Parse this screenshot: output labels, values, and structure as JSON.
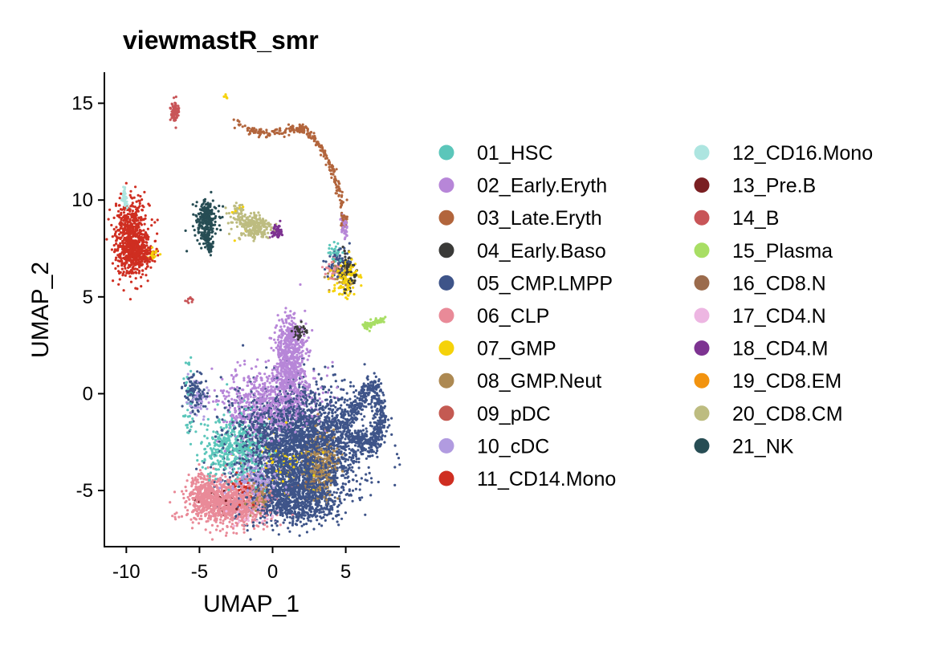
{
  "chart_data": {
    "type": "scatter",
    "title": "viewmastR_smr",
    "xlabel": "UMAP_1",
    "ylabel": "UMAP_2",
    "xlim": [
      -11.5,
      8.7
    ],
    "ylim": [
      -7.9,
      16.6
    ],
    "x_ticks": [
      -10,
      -5,
      0,
      5
    ],
    "x_tick_labels": [
      "-10",
      "-5",
      "0",
      "5"
    ],
    "y_ticks": [
      -5,
      0,
      5,
      10,
      15
    ],
    "y_tick_labels": [
      "-5",
      "0",
      "5",
      "10",
      "15"
    ],
    "grid": false,
    "legend_position": "right",
    "series": [
      {
        "name": "01_HSC",
        "color": "#5BC6BA"
      },
      {
        "name": "02_Early.Eryth",
        "color": "#B786D8"
      },
      {
        "name": "03_Late.Eryth",
        "color": "#B2653C"
      },
      {
        "name": "04_Early.Baso",
        "color": "#3A3A38"
      },
      {
        "name": "05_CMP.LMPP",
        "color": "#3E5489"
      },
      {
        "name": "06_CLP",
        "color": "#E98A98"
      },
      {
        "name": "07_GMP",
        "color": "#F5D20A"
      },
      {
        "name": "08_GMP.Neut",
        "color": "#AD8952"
      },
      {
        "name": "09_pDC",
        "color": "#C45A52"
      },
      {
        "name": "10_cDC",
        "color": "#B19BE0"
      },
      {
        "name": "11_CD14.Mono",
        "color": "#CF2E21"
      },
      {
        "name": "12_CD16.Mono",
        "color": "#ADE5E0"
      },
      {
        "name": "13_Pre.B",
        "color": "#7A1F22"
      },
      {
        "name": "14_B",
        "color": "#C85558"
      },
      {
        "name": "15_Plasma",
        "color": "#A8DE64"
      },
      {
        "name": "16_CD8.N",
        "color": "#9B6B4C"
      },
      {
        "name": "17_CD4.N",
        "color": "#EDB6E2"
      },
      {
        "name": "18_CD4.M",
        "color": "#7D3391"
      },
      {
        "name": "19_CD8.EM",
        "color": "#F2930F"
      },
      {
        "name": "20_CD8.CM",
        "color": "#BDBC80"
      },
      {
        "name": "21_NK",
        "color": "#274D54"
      }
    ],
    "clusters": [
      {
        "series": "03_Late.Eryth",
        "n": 280,
        "path": [
          [
            -2.5,
            13.9
          ],
          [
            -1.0,
            13.5
          ],
          [
            0.5,
            13.5
          ],
          [
            1.8,
            13.7
          ],
          [
            2.3,
            13.6
          ],
          [
            3.2,
            12.8
          ],
          [
            4.0,
            11.7
          ],
          [
            4.6,
            10.3
          ],
          [
            4.9,
            9.0
          ],
          [
            4.9,
            8.5
          ]
        ],
        "spread": 0.12
      },
      {
        "series": "02_Early.Eryth",
        "n": 40,
        "path": [
          [
            4.9,
            9.1
          ],
          [
            4.9,
            8.1
          ]
        ],
        "spread": 0.12
      },
      {
        "series": "11_CD14.Mono",
        "n": 700,
        "center": [
          -9.6,
          8.0
        ],
        "sx": 0.6,
        "sy": 0.95
      },
      {
        "series": "11_CD14.Mono",
        "n": 150,
        "center": [
          -9.2,
          7.1
        ],
        "sx": 0.55,
        "sy": 0.3
      },
      {
        "series": "07_GMP",
        "n": 25,
        "center": [
          -8.2,
          7.2
        ],
        "sx": 0.2,
        "sy": 0.15
      },
      {
        "series": "12_CD16.Mono",
        "n": 40,
        "path": [
          [
            -10.2,
            10.6
          ],
          [
            -10.0,
            9.6
          ]
        ],
        "spread": 0.08
      },
      {
        "series": "14_B",
        "n": 90,
        "center": [
          -6.7,
          14.5
        ],
        "sx": 0.15,
        "sy": 0.25
      },
      {
        "series": "21_NK",
        "n": 260,
        "center": [
          -4.5,
          8.9
        ],
        "sx": 0.35,
        "sy": 0.55
      },
      {
        "series": "21_NK",
        "n": 60,
        "path": [
          [
            -4.6,
            8.2
          ],
          [
            -4.2,
            7.4
          ]
        ],
        "spread": 0.1
      },
      {
        "series": "20_CD8.CM",
        "n": 220,
        "center": [
          -1.2,
          8.6
        ],
        "sx": 0.55,
        "sy": 0.35
      },
      {
        "series": "20_CD8.CM",
        "n": 60,
        "center": [
          -2.4,
          9.2
        ],
        "sx": 0.3,
        "sy": 0.3
      },
      {
        "series": "18_CD4.M",
        "n": 50,
        "center": [
          0.3,
          8.4
        ],
        "sx": 0.22,
        "sy": 0.2
      },
      {
        "series": "07_GMP",
        "n": 8,
        "center": [
          -2.4,
          9.2
        ],
        "sx": 0.4,
        "sy": 0.4
      },
      {
        "series": "14_B",
        "n": 10,
        "center": [
          -5.6,
          4.8
        ],
        "sx": 0.15,
        "sy": 0.06
      },
      {
        "series": "07_GMP",
        "n": 5,
        "center": [
          -3.2,
          15.4
        ],
        "sx": 0.04,
        "sy": 0.06
      },
      {
        "series": "07_GMP",
        "n": 120,
        "center": [
          5.0,
          5.9
        ],
        "sx": 0.45,
        "sy": 0.5
      },
      {
        "series": "04_Early.Baso",
        "n": 90,
        "center": [
          5.2,
          6.3
        ],
        "sx": 0.3,
        "sy": 0.5
      },
      {
        "series": "05_CMP.LMPP",
        "n": 60,
        "center": [
          4.5,
          6.8
        ],
        "sx": 0.4,
        "sy": 0.35
      },
      {
        "series": "06_CLP",
        "n": 30,
        "center": [
          4.0,
          6.4
        ],
        "sx": 0.3,
        "sy": 0.25
      },
      {
        "series": "01_HSC",
        "n": 25,
        "center": [
          4.2,
          7.3
        ],
        "sx": 0.25,
        "sy": 0.25
      },
      {
        "series": "08_GMP.Neut",
        "n": 30,
        "center": [
          4.4,
          6.2
        ],
        "sx": 0.4,
        "sy": 0.35
      },
      {
        "series": "15_Plasma",
        "n": 70,
        "path": [
          [
            6.2,
            3.5
          ],
          [
            7.6,
            3.8
          ]
        ],
        "spread": 0.09
      },
      {
        "series": "05_CMP.LMPP",
        "n": 120,
        "center": [
          -5.3,
          0.0
        ],
        "sx": 0.4,
        "sy": 0.45
      },
      {
        "series": "10_cDC",
        "n": 40,
        "center": [
          -5.0,
          -0.3
        ],
        "sx": 0.45,
        "sy": 0.5
      },
      {
        "series": "01_HSC",
        "n": 40,
        "path": [
          [
            -5.7,
            1.9
          ],
          [
            -5.8,
            -0.5
          ],
          [
            -5.6,
            -2.0
          ]
        ],
        "spread": 0.18
      },
      {
        "series": "02_Early.Eryth",
        "n": 600,
        "center": [
          1.2,
          1.9
        ],
        "sx": 0.5,
        "sy": 1.0
      },
      {
        "series": "02_Early.Eryth",
        "n": 700,
        "center": [
          0.0,
          -0.4
        ],
        "sx": 1.6,
        "sy": 0.9
      },
      {
        "series": "04_Early.Baso",
        "n": 50,
        "center": [
          1.8,
          3.2
        ],
        "sx": 0.25,
        "sy": 0.2
      },
      {
        "series": "05_CMP.LMPP",
        "n": 2600,
        "center": [
          1.8,
          -2.6
        ],
        "sx": 2.2,
        "sy": 1.4
      },
      {
        "series": "05_CMP.LMPP",
        "n": 900,
        "center": [
          1.6,
          -5.4
        ],
        "sx": 1.5,
        "sy": 0.7
      },
      {
        "series": "05_CMP.LMPP",
        "n": 500,
        "path": [
          [
            4.8,
            -1.8
          ],
          [
            6.0,
            -0.3
          ],
          [
            7.0,
            0.5
          ],
          [
            7.5,
            -1.5
          ],
          [
            6.8,
            -2.6
          ],
          [
            5.6,
            -2.3
          ]
        ],
        "spread": 0.25
      },
      {
        "series": "01_HSC",
        "n": 500,
        "center": [
          -2.6,
          -2.9
        ],
        "sx": 1.1,
        "sy": 0.9
      },
      {
        "series": "06_CLP",
        "n": 900,
        "center": [
          -2.9,
          -5.7
        ],
        "sx": 1.4,
        "sy": 0.6
      },
      {
        "series": "06_CLP",
        "n": 250,
        "center": [
          -4.7,
          -5.1
        ],
        "sx": 0.5,
        "sy": 0.5
      },
      {
        "series": "10_cDC",
        "n": 250,
        "center": [
          -1.2,
          -4.3
        ],
        "sx": 0.9,
        "sy": 0.7
      },
      {
        "series": "08_GMP.Neut",
        "n": 300,
        "center": [
          3.3,
          -3.6
        ],
        "sx": 0.55,
        "sy": 0.9
      },
      {
        "series": "08_GMP.Neut",
        "n": 80,
        "center": [
          -1.0,
          -5.3
        ],
        "sx": 0.4,
        "sy": 0.4
      },
      {
        "series": "07_GMP",
        "n": 80,
        "center": [
          0.6,
          -3.8
        ],
        "sx": 1.2,
        "sy": 0.9
      },
      {
        "series": "11_CD14.Mono",
        "n": 30,
        "center": [
          -2.2,
          -5.0
        ],
        "sx": 0.4,
        "sy": 0.4
      },
      {
        "series": "13_Pre.B",
        "n": 20,
        "center": [
          -3.4,
          -5.6
        ],
        "sx": 0.6,
        "sy": 0.4
      },
      {
        "series": "17_CD4.N",
        "n": 40,
        "center": [
          -1.5,
          -6.3
        ],
        "sx": 0.8,
        "sy": 0.3
      },
      {
        "series": "16_CD8.N",
        "n": 15,
        "center": [
          2.5,
          -4.5
        ],
        "sx": 0.6,
        "sy": 0.5
      }
    ]
  }
}
